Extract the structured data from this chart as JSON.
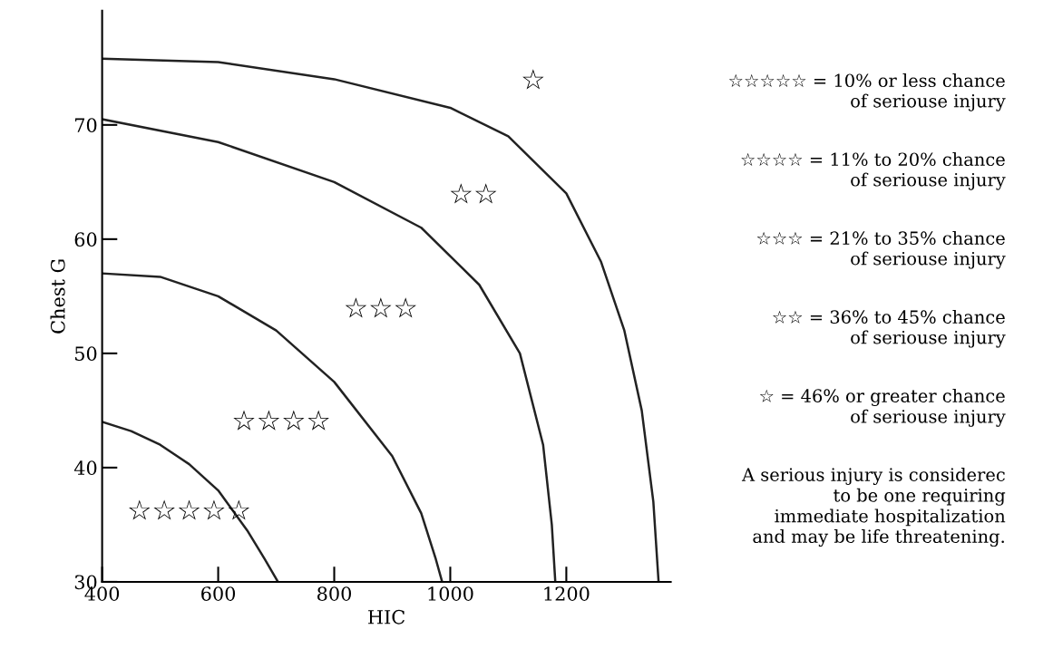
{
  "chart_data": {
    "type": "line",
    "xlabel": "HIC",
    "ylabel": "Chest G",
    "xlim": [
      400,
      1380
    ],
    "ylim": [
      30,
      80
    ],
    "xticks": [
      400,
      600,
      800,
      1000,
      1200
    ],
    "yticks": [
      30,
      40,
      50,
      60,
      70
    ],
    "grid": false,
    "legend": false,
    "marker": "none",
    "line_style": "solid",
    "series": [
      {
        "color": "#222222",
        "x": [
          400,
          450,
          500,
          550,
          600,
          650,
          680,
          703
        ],
        "values": [
          44,
          43.2,
          42,
          40.3,
          38,
          34.5,
          32,
          30
        ]
      },
      {
        "color": "#222222",
        "x": [
          400,
          500,
          600,
          700,
          800,
          900,
          950,
          975,
          986
        ],
        "values": [
          57,
          56.7,
          55,
          52,
          47.5,
          41,
          36,
          32,
          30
        ]
      },
      {
        "color": "#222222",
        "x": [
          400,
          600,
          800,
          950,
          1050,
          1120,
          1160,
          1175,
          1181
        ],
        "values": [
          70.5,
          68.5,
          65,
          61,
          56,
          50,
          42,
          35,
          30
        ]
      },
      {
        "color": "#222222",
        "x": [
          400,
          600,
          800,
          1000,
          1100,
          1200,
          1260,
          1300,
          1330,
          1350,
          1359
        ],
        "values": [
          75.8,
          75.5,
          74,
          71.5,
          69,
          64,
          58,
          52,
          45,
          37,
          30
        ]
      }
    ],
    "annotations": [
      "☆☆☆☆☆",
      "☆☆☆☆",
      "☆☆☆",
      "☆☆",
      "☆",
      "☆☆☆☆☆ = 10% or less chance\nof seriouse injury",
      "☆☆☆☆ = 11% to 20% chance\nof seriouse injury",
      "☆☆☆ = 21% to 35% chance\nof seriouse injury",
      "☆☆ = 36% to 45% chance\nof seriouse injury",
      "☆ = 46% or greater chance\nof seriouse injury",
      "A serious injury is considerec\nto be one requiring\nimmediate hospitalization\nand may be life threatening."
    ]
  }
}
